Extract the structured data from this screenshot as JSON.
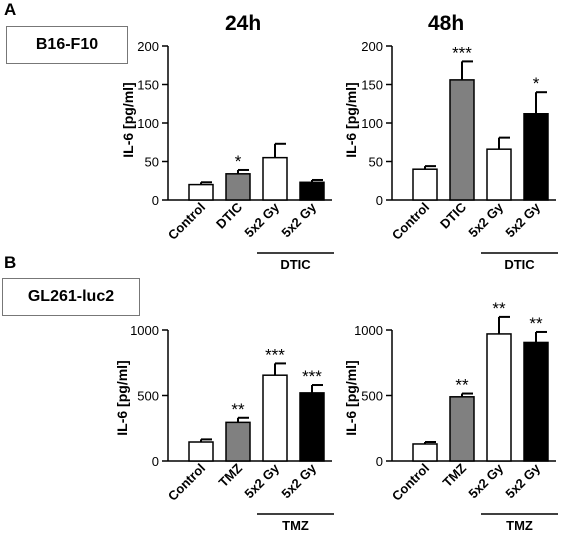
{
  "panel_a": {
    "letter": "A",
    "cell_line": "B16-F10"
  },
  "panel_b": {
    "letter": "B",
    "cell_line": "GL261-luc2"
  },
  "columns": {
    "left": "24h",
    "right": "48h"
  },
  "colors": {
    "white": "#ffffff",
    "gray": "#808080",
    "black": "#000000",
    "stroke": "#000000"
  },
  "chart_data": [
    {
      "type": "bar",
      "id": "a24",
      "ylabel": "IL-6 [pg/ml]",
      "ylim": [
        0,
        200
      ],
      "yticks": [
        0,
        50,
        100,
        150,
        200
      ],
      "categories": [
        "Control",
        "DTIC",
        "5x2 Gy",
        "5x2 Gy"
      ],
      "values": [
        20,
        34,
        55,
        23
      ],
      "errors": [
        3,
        5,
        18,
        3
      ],
      "significance": [
        "",
        "*",
        "",
        ""
      ],
      "fills": [
        "white",
        "gray",
        "white",
        "black"
      ],
      "group_label": "DTIC"
    },
    {
      "type": "bar",
      "id": "a48",
      "ylabel": "IL-6 [pg/ml]",
      "ylim": [
        0,
        200
      ],
      "yticks": [
        0,
        50,
        100,
        150,
        200
      ],
      "categories": [
        "Control",
        "DTIC",
        "5x2 Gy",
        "5x2 Gy"
      ],
      "values": [
        40,
        156,
        66,
        112
      ],
      "errors": [
        4,
        24,
        15,
        28
      ],
      "significance": [
        "",
        "***",
        "",
        "*"
      ],
      "fills": [
        "white",
        "gray",
        "white",
        "black"
      ],
      "group_label": "DTIC"
    },
    {
      "type": "bar",
      "id": "b24",
      "ylabel": "IL-6 [pg/ml]",
      "ylim": [
        0,
        1000
      ],
      "yticks": [
        0,
        500,
        1000
      ],
      "categories": [
        "Control",
        "TMZ",
        "5x2 Gy",
        "5x2 Gy"
      ],
      "values": [
        145,
        295,
        655,
        520
      ],
      "errors": [
        20,
        35,
        90,
        60
      ],
      "significance": [
        "",
        "**",
        "***",
        "***"
      ],
      "fills": [
        "white",
        "gray",
        "white",
        "black"
      ],
      "group_label": "TMZ"
    },
    {
      "type": "bar",
      "id": "b48",
      "ylabel": "IL-6 [pg/ml]",
      "ylim": [
        0,
        1000
      ],
      "yticks": [
        0,
        500,
        1000
      ],
      "categories": [
        "Control",
        "TMZ",
        "5x2 Gy",
        "5x2 Gy"
      ],
      "values": [
        130,
        490,
        970,
        905
      ],
      "errors": [
        15,
        25,
        130,
        80
      ],
      "significance": [
        "",
        "**",
        "**",
        "**"
      ],
      "fills": [
        "white",
        "gray",
        "white",
        "black"
      ],
      "group_label": "TMZ"
    }
  ]
}
